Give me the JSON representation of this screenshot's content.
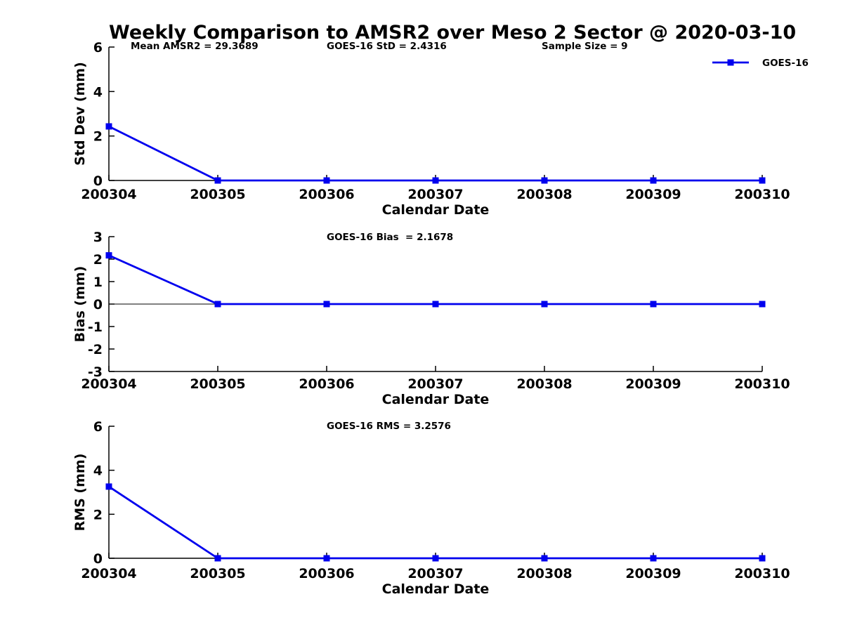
{
  "title": "Weekly Comparison to AMSR2 over Meso 2 Sector @ 2020-03-10",
  "colors": {
    "series_blue": "#0000EE",
    "axis_black": "#000000",
    "background": "#FFFFFF"
  },
  "legend": {
    "label": "GOES-16"
  },
  "chart_data": [
    {
      "type": "line",
      "ylabel": "Std Dev (mm)",
      "xlabel": "Calendar Date",
      "ylim": [
        0,
        6
      ],
      "yticks": [
        0,
        2,
        4,
        6
      ],
      "categories": [
        "200304",
        "200305",
        "200306",
        "200307",
        "200308",
        "200309",
        "200310"
      ],
      "series": [
        {
          "name": "GOES-16",
          "values": [
            2.4316,
            0,
            0,
            0,
            0,
            0,
            0
          ]
        }
      ],
      "annotations": [
        "Mean AMSR2 = 29.3689",
        "GOES-16 StD = 2.4316",
        "Sample Size = 9"
      ],
      "zero_line": false,
      "grid": false,
      "legend_position": "top-right"
    },
    {
      "type": "line",
      "ylabel": "Bias (mm)",
      "xlabel": "Calendar Date",
      "ylim": [
        -3,
        3
      ],
      "yticks": [
        -3,
        -2,
        -1,
        0,
        1,
        2,
        3
      ],
      "categories": [
        "200304",
        "200305",
        "200306",
        "200307",
        "200308",
        "200309",
        "200310"
      ],
      "series": [
        {
          "name": "GOES-16",
          "values": [
            2.1678,
            0,
            0,
            0,
            0,
            0,
            0
          ]
        }
      ],
      "annotations": [
        "GOES-16 Bias  = 2.1678"
      ],
      "zero_line": true,
      "grid": false,
      "legend_position": null
    },
    {
      "type": "line",
      "ylabel": "RMS (mm)",
      "xlabel": "Calendar Date",
      "ylim": [
        0,
        6
      ],
      "yticks": [
        0,
        2,
        4,
        6
      ],
      "categories": [
        "200304",
        "200305",
        "200306",
        "200307",
        "200308",
        "200309",
        "200310"
      ],
      "series": [
        {
          "name": "GOES-16",
          "values": [
            3.2576,
            0,
            0,
            0,
            0,
            0,
            0
          ]
        }
      ],
      "annotations": [
        "GOES-16 RMS = 3.2576"
      ],
      "zero_line": false,
      "grid": false,
      "legend_position": null
    }
  ]
}
